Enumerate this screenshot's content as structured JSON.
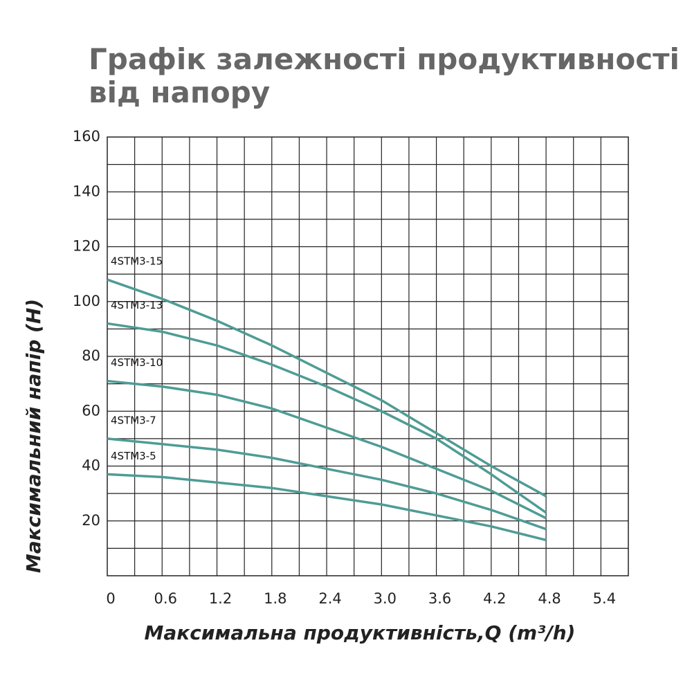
{
  "chart_data": {
    "type": "line",
    "title": "Графік залежності продуктивності від напору",
    "x_label": "Максимальна продуктивність,Q (m³/h)",
    "y_label": "Максимальний напір (H)",
    "x": [
      0,
      0.6,
      1.2,
      1.8,
      2.4,
      3.0,
      3.6,
      4.2,
      4.8
    ],
    "series": [
      {
        "name": "4STM3-15",
        "color": "#4e9c95",
        "values": [
          108,
          101,
          93,
          84,
          74,
          64,
          52,
          40,
          29
        ]
      },
      {
        "name": "4STM3-13",
        "color": "#4e9c95",
        "values": [
          92,
          89,
          84,
          77,
          69,
          60,
          50,
          37,
          23
        ]
      },
      {
        "name": "4STM3-10",
        "color": "#4e9c95",
        "values": [
          71,
          69,
          66,
          61,
          54,
          47,
          39,
          31,
          21
        ]
      },
      {
        "name": "4STM3-7",
        "color": "#4e9c95",
        "values": [
          50,
          48,
          46,
          43,
          39,
          35,
          30,
          24,
          17
        ]
      },
      {
        "name": "4STM3-5",
        "color": "#4e9c95",
        "values": [
          37,
          36,
          34,
          32,
          29,
          26,
          22,
          18,
          13
        ]
      }
    ],
    "xlim": [
      0,
      5.7
    ],
    "ylim": [
      0,
      160
    ],
    "xticks": [
      0,
      0.6,
      1.2,
      1.8,
      2.4,
      {
        "value": 3.0,
        "label": "3.0"
      },
      3.6,
      4.2,
      4.8,
      5.4
    ],
    "yticks": [
      20,
      40,
      60,
      80,
      100,
      120,
      140,
      160
    ],
    "grid": true,
    "grid_step_x": 0.3,
    "grid_step_y": 10
  }
}
